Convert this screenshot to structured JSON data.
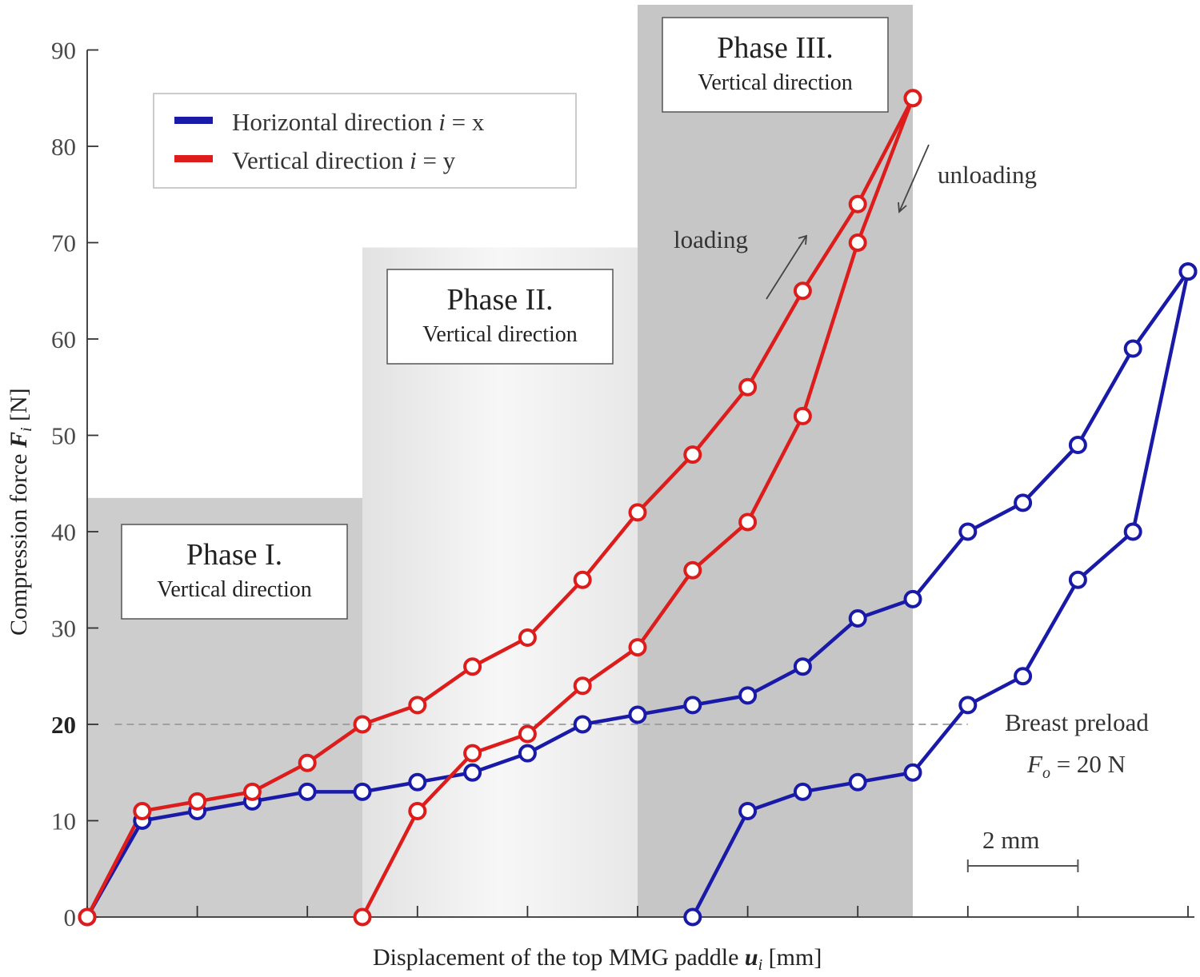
{
  "chart_data": {
    "type": "line",
    "xlabel_prefix": "Displacement of the top MMG paddle ",
    "xlabel_symbol": "u",
    "xlabel_sub": "i",
    "xlabel_unit": " [mm]",
    "ylabel_prefix": "Compression force ",
    "ylabel_symbol": "F",
    "ylabel_sub": "i",
    "ylabel_unit": " [N]",
    "ylim": [
      0,
      90
    ],
    "xlim": [
      0,
      20
    ],
    "yticks": [
      0,
      10,
      20,
      30,
      40,
      50,
      60,
      70,
      80,
      90
    ],
    "ytick_labels": [
      "0",
      "10",
      "20",
      "30",
      "40",
      "50",
      "60",
      "70",
      "80",
      "90"
    ],
    "xtick_positions": [
      0,
      2,
      4,
      6,
      8,
      10,
      12,
      14,
      16,
      18,
      20
    ],
    "grid": false,
    "legend_position": "top-left",
    "series": [
      {
        "name": "Horizontal direction i = x",
        "legend_text": "Horizontal direction ",
        "legend_var": "i",
        "legend_eq": " = x",
        "color": "#1a1aa8",
        "branches": [
          {
            "x": [
              0,
              1,
              2,
              3,
              4,
              5,
              6,
              7,
              8,
              9,
              10,
              11,
              12,
              13,
              14,
              15,
              16,
              17,
              18,
              19,
              20
            ],
            "y": [
              0,
              10,
              11,
              12,
              13,
              13,
              14,
              15,
              17,
              20,
              21,
              22,
              23,
              26,
              31,
              33,
              40,
              43,
              49,
              59,
              67
            ]
          },
          {
            "x": [
              20,
              19,
              18,
              17,
              16,
              15,
              14,
              13,
              12,
              11
            ],
            "y": [
              67,
              40,
              35,
              25,
              22,
              15,
              14,
              13,
              11,
              0
            ]
          }
        ]
      },
      {
        "name": "Vertical direction i = y",
        "legend_text": "Vertical direction ",
        "legend_var": "i",
        "legend_eq": " = y",
        "color": "#dd1c1c",
        "branches": [
          {
            "x": [
              0,
              1,
              2,
              3,
              4,
              5,
              6,
              7,
              8,
              9,
              10,
              11,
              12,
              13,
              14,
              15
            ],
            "y": [
              0,
              11,
              12,
              13,
              16,
              20,
              22,
              26,
              29,
              35,
              42,
              48,
              55,
              65,
              74,
              85
            ]
          },
          {
            "x": [
              15,
              14,
              13,
              12,
              11,
              10,
              9,
              8,
              7,
              6,
              5
            ],
            "y": [
              85,
              70,
              52,
              41,
              36,
              28,
              24,
              19,
              17,
              11,
              0
            ]
          }
        ]
      }
    ],
    "phases": [
      {
        "title": "Phase I.",
        "subtitle": "Vertical direction",
        "x_start": 0,
        "x_end": 5,
        "y_top": 43.5,
        "shade": "#cdcdcd"
      },
      {
        "title": "Phase II.",
        "subtitle": "Vertical direction",
        "x_start": 5,
        "x_end": 10,
        "y_top": 69.5,
        "shade": "#ececec"
      },
      {
        "title": "Phase III.",
        "subtitle": "Vertical direction",
        "x_start": 10,
        "x_end": 15,
        "y_top": 95,
        "shade": "#c6c6c6"
      }
    ],
    "preload": {
      "value": 20,
      "label": "Breast preload",
      "eq_symbol": "F",
      "eq_sub": "o",
      "eq_rest": " = 20 N"
    },
    "annotations": {
      "loading": "loading",
      "unloading": "unloading"
    },
    "scale_bar": {
      "label": "2 mm",
      "length": 2
    }
  }
}
